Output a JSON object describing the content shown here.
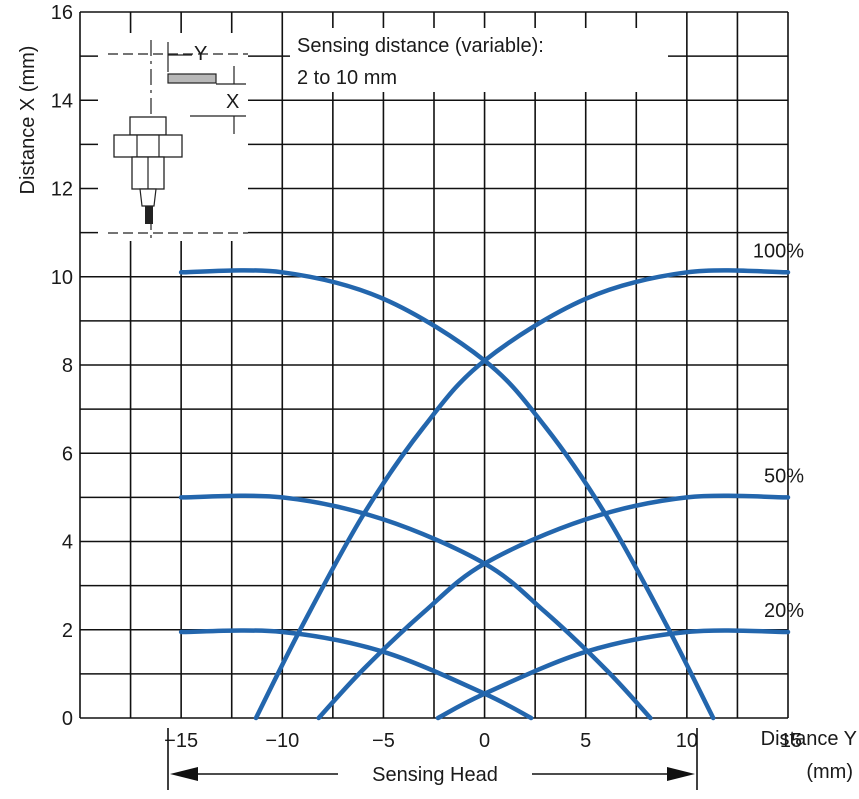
{
  "chart_data": {
    "type": "line",
    "ylabel": "Distance X (mm)",
    "xlabel_line1": "Distance Y",
    "xlabel_line2": "(mm)",
    "xlim": [
      -20,
      15
    ],
    "ylim": [
      0,
      16
    ],
    "x_ticks": [
      "−15",
      "−10",
      "−5",
      "0",
      "5",
      "10",
      "15"
    ],
    "y_ticks": [
      "0",
      "2",
      "4",
      "6",
      "8",
      "10",
      "12",
      "14",
      "16"
    ],
    "grid": true,
    "annotation_line1": "Sensing distance (variable):",
    "annotation_line2": "2 to 10 mm",
    "head_label": "Sensing Head",
    "head_range": [
      -15,
      15
    ],
    "inset": {
      "label_y": "Y",
      "label_x": "X",
      "description": "sensor-diagram-icon"
    },
    "curve_color": "#2366ad",
    "series": [
      {
        "name": "100%",
        "label": "100%",
        "approach_left": [
          [
            -15,
            10.1
          ],
          [
            -10,
            10.1
          ],
          [
            -5,
            9.5
          ],
          [
            0,
            8.1
          ],
          [
            3,
            6.6
          ],
          [
            6,
            4.6
          ],
          [
            9,
            2.1
          ],
          [
            11.3,
            0
          ]
        ],
        "approach_right": [
          [
            -11.3,
            0
          ],
          [
            -9,
            2.1
          ],
          [
            -6,
            4.6
          ],
          [
            -3,
            6.6
          ],
          [
            0,
            8.1
          ],
          [
            5,
            9.5
          ],
          [
            10,
            10.1
          ],
          [
            15,
            10.1
          ]
        ]
      },
      {
        "name": "50%",
        "label": "50%",
        "approach_left": [
          [
            -15,
            5.0
          ],
          [
            -10,
            5.0
          ],
          [
            -5,
            4.5
          ],
          [
            0,
            3.5
          ],
          [
            3,
            2.4
          ],
          [
            6,
            1.1
          ],
          [
            8.2,
            0
          ]
        ],
        "approach_right": [
          [
            -8.2,
            0
          ],
          [
            -6,
            1.1
          ],
          [
            -3,
            2.4
          ],
          [
            0,
            3.5
          ],
          [
            5,
            4.5
          ],
          [
            10,
            5.0
          ],
          [
            15,
            5.0
          ]
        ]
      },
      {
        "name": "20%",
        "label": "20%",
        "approach_left": [
          [
            -15,
            1.95
          ],
          [
            -10,
            1.95
          ],
          [
            -5,
            1.5
          ],
          [
            0,
            0.55
          ],
          [
            2.3,
            0
          ]
        ],
        "approach_right": [
          [
            -2.3,
            0
          ],
          [
            0,
            0.55
          ],
          [
            5,
            1.5
          ],
          [
            10,
            1.95
          ],
          [
            15,
            1.95
          ]
        ]
      }
    ]
  }
}
